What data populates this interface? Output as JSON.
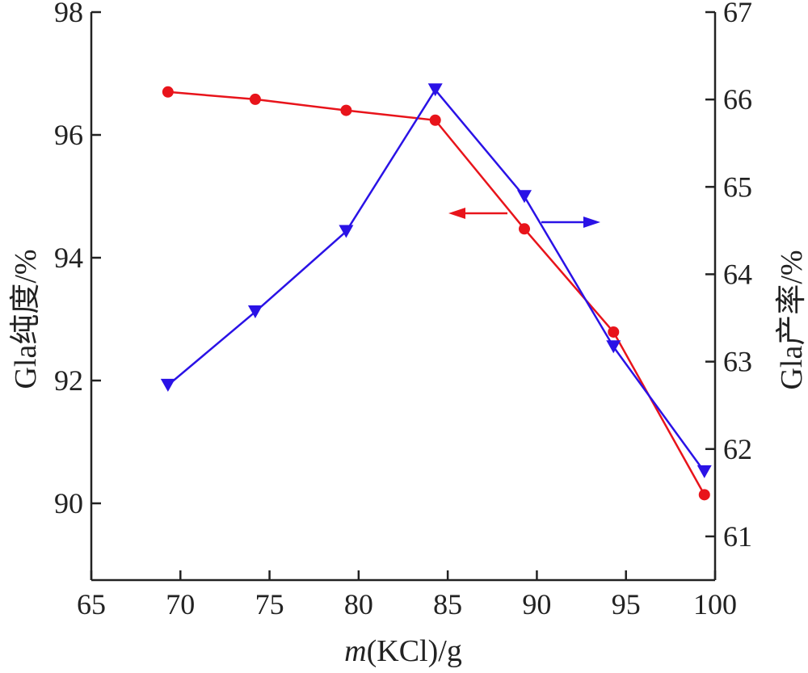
{
  "chart_data": {
    "type": "line",
    "xlabel_italic": "m",
    "xlabel_rest": "(KCl)/g",
    "ylabel_left": "Gla纯度/%",
    "ylabel_right": "Gla产率/%",
    "x": [
      69.3,
      74.2,
      79.3,
      84.3,
      89.3,
      94.3,
      99.4
    ],
    "xlim": [
      65,
      100
    ],
    "xticks": [
      65,
      70,
      75,
      80,
      85,
      90,
      95,
      100
    ],
    "ylim_left": [
      88.75,
      98
    ],
    "yticks_left": [
      90,
      92,
      94,
      96,
      98
    ],
    "ylim_right": [
      60.5,
      67
    ],
    "yticks_right": [
      61,
      62,
      63,
      64,
      65,
      66,
      67
    ],
    "series": [
      {
        "axis": "left",
        "color": "#e8141b",
        "marker": "circle",
        "values": [
          96.7,
          96.58,
          96.4,
          96.24,
          94.47,
          92.79,
          90.14
        ]
      },
      {
        "axis": "right",
        "color": "#2a12e6",
        "marker": "triangle-down",
        "values": [
          62.73,
          63.57,
          64.49,
          66.11,
          64.89,
          63.17,
          61.74
        ]
      }
    ],
    "annotations": [
      {
        "type": "arrow",
        "direction": "left",
        "color": "#e8141b",
        "points_to": "left-axis"
      },
      {
        "type": "arrow",
        "direction": "right",
        "color": "#2a12e6",
        "points_to": "right-axis"
      }
    ]
  }
}
